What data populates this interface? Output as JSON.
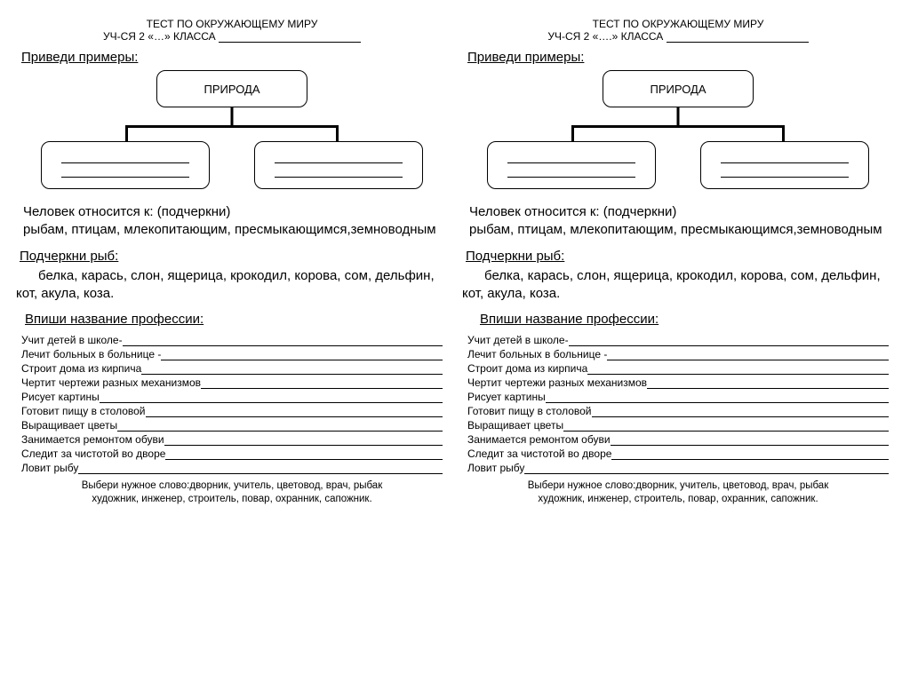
{
  "left": {
    "header1": "ТЕСТ ПО ОКРУЖАЮЩЕМУ МИРУ",
    "header2": "УЧ-СЯ 2 «…» КЛАССА",
    "examples_title": "Приведи примеры:",
    "root_label": "ПРИРОДА",
    "q1_bold": "Человек относится к:",
    "q1_hint": "(подчеркни)",
    "q1_options": "рыбам, птицам, млекопитающим, пресмыкающимся,земноводным",
    "q2_title": "Подчеркни рыб:",
    "q2_list": "белка, карась, слон, ящерица, крокодил, корова, сом, дельфин, кот, акула, коза.",
    "q3_title": "Впиши название профессии:",
    "professions": [
      "Учит детей в школе-",
      "Лечит больных в больнице - ",
      "Строит дома из кирпича",
      "Чертит чертежи разных механизмов",
      "Рисует картины",
      "Готовит пищу в столовой",
      "Выращивает цветы",
      "Занимается ремонтом обуви",
      "Следит за чистотой во дворе",
      "Ловит рыбу"
    ],
    "footer1": "Выбери нужное слово:дворник, учитель, цветовод, врач, рыбак",
    "footer2": "художник, инженер, строитель, повар, охранник, сапожник."
  },
  "right": {
    "header1": "ТЕСТ ПО ОКРУЖАЮЩЕМУ МИРУ",
    "header2": "УЧ-СЯ 2 «….» КЛАССА",
    "examples_title": "Приведи примеры:",
    "root_label": "ПРИРОДА",
    "q1_bold": "Человек относится к:",
    "q1_hint": "(подчеркни)",
    "q1_options": "рыбам, птицам, млекопитающим, пресмыкающимся,земноводным",
    "q2_title": "Подчеркни рыб:",
    "q2_list": "белка, карась, слон, ящерица, крокодил, корова, сом, дельфин, кот, акула, коза.",
    "q3_title": "Впиши название профессии:",
    "professions": [
      "Учит детей в школе-",
      "Лечит больных в больнице - ",
      "Строит дома из кирпича",
      "Чертит чертежи разных механизмов",
      "Рисует картины",
      "Готовит пищу в столовой",
      "Выращивает цветы",
      "Занимается ремонтом обуви",
      "Следит за чистотой во дворе",
      "Ловит рыбу"
    ],
    "footer1": "Выбери нужное слово:дворник, учитель, цветовод, врач, рыбак",
    "footer2": "художник, инженер, строитель, повар, охранник, сапожник."
  }
}
